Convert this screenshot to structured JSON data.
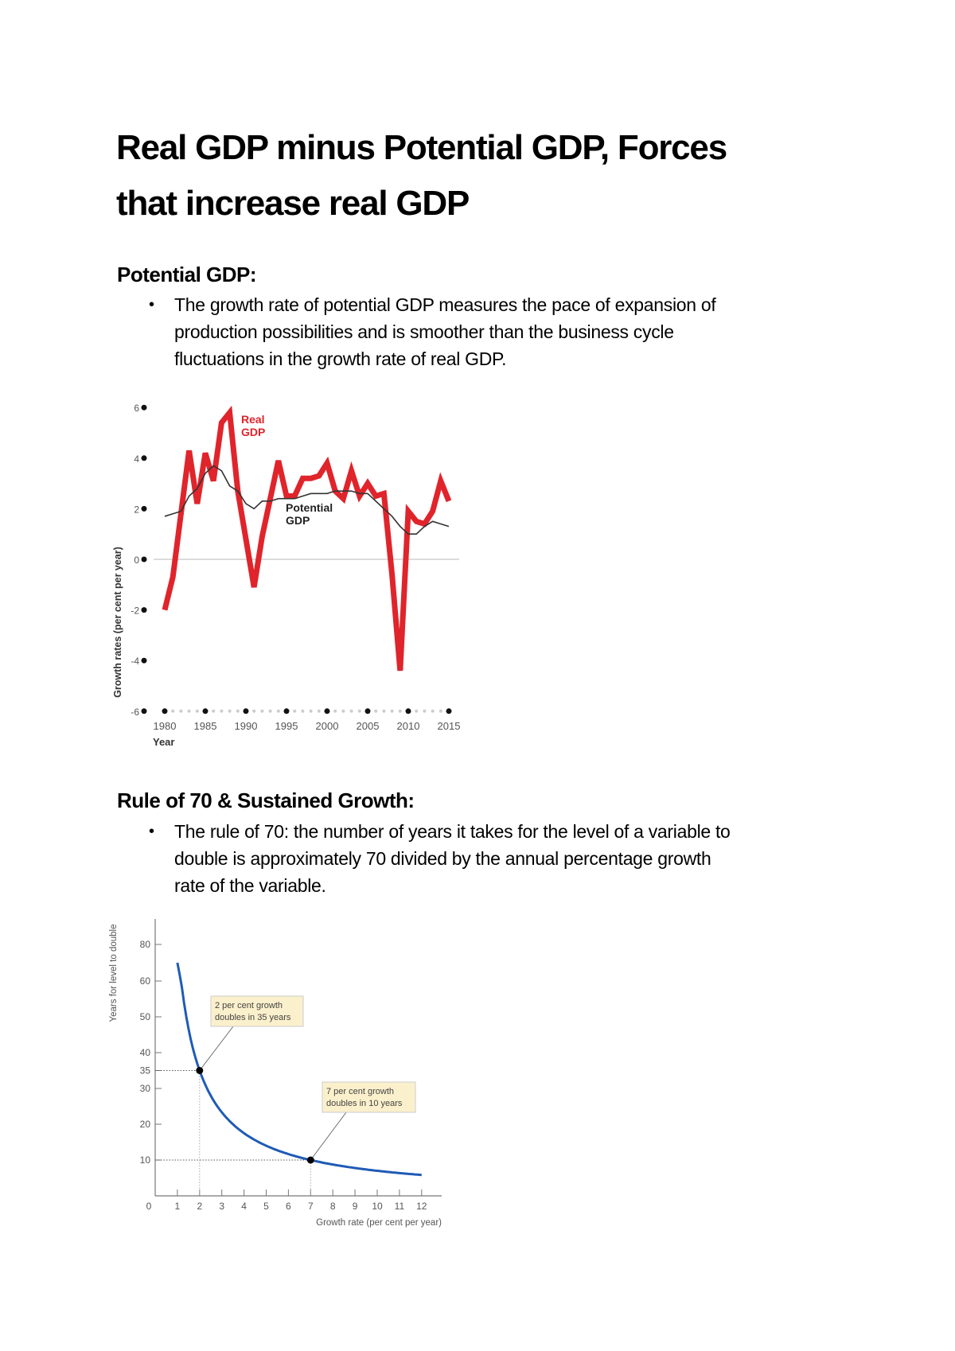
{
  "title": {
    "line1": "Real GDP minus Potential GDP, Forces",
    "line2": "that increase real GDP"
  },
  "section1": {
    "heading": "Potential GDP:",
    "bullet": "•",
    "lines": [
      "The growth rate of potential GDP measures the pace of expansion of",
      "production possibilities and is smoother than the business cycle",
      "fluctuations in the growth rate of real GDP."
    ]
  },
  "section2": {
    "heading": "Rule of 70 & Sustained Growth:",
    "bullet": "•",
    "lines": [
      "The rule of 70: the number of years it takes for the level of a variable to",
      "double is approximately 70 divided by the annual percentage growth",
      "rate of the variable."
    ]
  },
  "chart_data": [
    {
      "type": "line",
      "xlabel": "Year",
      "ylabel": "Growth rates (per cent per year)",
      "xlim": [
        1980,
        2015
      ],
      "ylim": [
        -6,
        6
      ],
      "x_ticks": [
        "1980",
        "1985",
        "1990",
        "1995",
        "2000",
        "2005",
        "2010",
        "2015"
      ],
      "y_ticks": [
        "6",
        "4",
        "2",
        "0",
        "-2",
        "-4",
        "-6"
      ],
      "grid": false,
      "x": [
        1980,
        1981,
        1982,
        1983,
        1984,
        1985,
        1986,
        1987,
        1988,
        1989,
        1990,
        1991,
        1992,
        1993,
        1994,
        1995,
        1996,
        1997,
        1998,
        1999,
        2000,
        2001,
        2002,
        2003,
        2004,
        2005,
        2006,
        2007,
        2008,
        2009,
        2010,
        2011,
        2012,
        2013,
        2014,
        2015
      ],
      "series": [
        {
          "name": "Real GDP",
          "label_lines": [
            "Real",
            "GDP"
          ],
          "color": "#e0242b",
          "values": [
            -2.0,
            -0.7,
            1.8,
            4.3,
            2.2,
            4.2,
            3.1,
            5.4,
            5.8,
            2.7,
            0.8,
            -1.1,
            0.9,
            2.4,
            3.9,
            2.5,
            2.5,
            3.2,
            3.2,
            3.3,
            3.8,
            2.7,
            2.4,
            3.5,
            2.5,
            3.0,
            2.5,
            2.6,
            -0.6,
            -4.4,
            1.9,
            1.5,
            1.4,
            1.9,
            3.1,
            2.3
          ]
        },
        {
          "name": "Potential GDP",
          "label_lines": [
            "Potential",
            "GDP"
          ],
          "color": "#333333",
          "values": [
            1.7,
            1.8,
            1.9,
            2.5,
            2.8,
            3.4,
            3.7,
            3.5,
            2.9,
            2.7,
            2.2,
            2.0,
            2.3,
            2.3,
            2.4,
            2.4,
            2.4,
            2.5,
            2.6,
            2.6,
            2.6,
            2.7,
            2.7,
            2.7,
            2.6,
            2.6,
            2.3,
            2.0,
            1.7,
            1.3,
            1.0,
            1.0,
            1.3,
            1.5,
            1.4,
            1.3
          ]
        }
      ]
    },
    {
      "type": "line",
      "xlabel": "Growth rate (per cent per year)",
      "ylabel": "Years for level to double",
      "xlim": [
        0,
        12
      ],
      "x_ticks": [
        "0",
        "1",
        "2",
        "3",
        "4",
        "5",
        "6",
        "7",
        "8",
        "9",
        "10",
        "11",
        "12"
      ],
      "y_ticks": [
        "80",
        "60",
        "50",
        "40",
        "35",
        "30",
        "20",
        "10"
      ],
      "grid": false,
      "series": [
        {
          "formula": "70 / growth rate",
          "color": "#1f5bb5",
          "x": [
            1,
            1.5,
            2,
            2.5,
            3,
            3.5,
            4,
            5,
            6,
            7,
            8,
            9,
            10,
            11,
            12
          ],
          "values": [
            70,
            46.7,
            35,
            28,
            23.3,
            20,
            17.5,
            14,
            11.7,
            10,
            8.75,
            7.8,
            7,
            6.4,
            5.8
          ]
        }
      ],
      "points": [
        {
          "x": 2,
          "y": 35
        },
        {
          "x": 7,
          "y": 10
        }
      ],
      "annotations": [
        {
          "lines": [
            "2 per cent growth",
            "doubles in 35 years"
          ]
        },
        {
          "lines": [
            "7 per cent growth",
            "doubles in 10 years"
          ]
        }
      ],
      "annotation_fill": "#fbf0cc"
    }
  ]
}
